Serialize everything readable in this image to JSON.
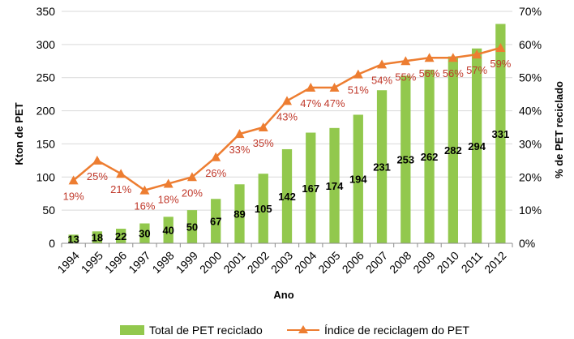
{
  "chart_data": {
    "type": "bar",
    "categories": [
      "1994",
      "1995",
      "1996",
      "1997",
      "1998",
      "1999",
      "2000",
      "2001",
      "2002",
      "2003",
      "2004",
      "2005",
      "2006",
      "2007",
      "2008",
      "2009",
      "2010",
      "2011",
      "2012"
    ],
    "series": [
      {
        "name": "Total de PET reciclado",
        "type": "bar",
        "axis": "left",
        "values": [
          13,
          18,
          22,
          30,
          40,
          50,
          67,
          89,
          105,
          142,
          167,
          174,
          194,
          231,
          253,
          262,
          282,
          294,
          331
        ],
        "labels": [
          "13",
          "18",
          "22",
          "30",
          "40",
          "50",
          "67",
          "89",
          "105",
          "142",
          "167",
          "174",
          "194",
          "231",
          "253",
          "262",
          "282",
          "294",
          "331"
        ],
        "color": "#92c84d"
      },
      {
        "name": "Índice de reciclagem do PET",
        "type": "line",
        "axis": "right",
        "values": [
          19,
          25,
          21,
          16,
          18,
          20,
          26,
          33,
          35,
          43,
          47,
          47,
          51,
          54,
          55,
          56,
          56,
          57,
          59
        ],
        "labels": [
          "19%",
          "25%",
          "21%",
          "16%",
          "18%",
          "20%",
          "26%",
          "33%",
          "35%",
          "43%",
          "47%",
          "47%",
          "51%",
          "54%",
          "55%",
          "56%",
          "56%",
          "57%",
          "59%"
        ],
        "color": "#ed7d31"
      }
    ],
    "title": "",
    "xlabel": "Ano",
    "ylabel": "Kton de PET",
    "y2label": "% de PET reciclado",
    "ylim": [
      0,
      350
    ],
    "y2lim": [
      0,
      70
    ],
    "yticks": [
      "0",
      "50",
      "100",
      "150",
      "200",
      "250",
      "300",
      "350"
    ],
    "y2ticks": [
      "0%",
      "10%",
      "20%",
      "30%",
      "40%",
      "50%",
      "60%",
      "70%"
    ],
    "grid": true,
    "legend": "bottom"
  }
}
